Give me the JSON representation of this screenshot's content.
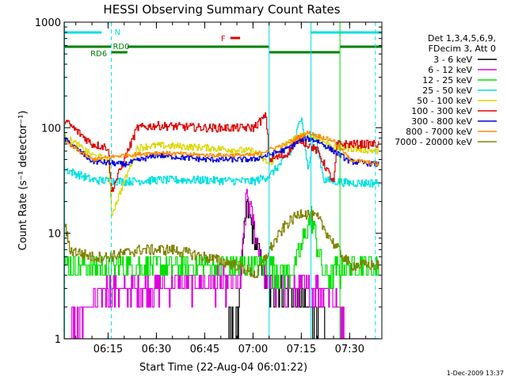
{
  "chart_data": {
    "type": "line",
    "title": "HESSI Observing Summary Count Rates",
    "xlabel": "Start Time (22-Aug-04 06:01:22)",
    "ylabel": "Count Rate (s⁻¹ detector⁻¹)",
    "y_scale": "log",
    "ylim": [
      1,
      1000
    ],
    "xlim": [
      "06:01:22",
      "07:40:00"
    ],
    "x_ticks": [
      "06:15",
      "06:30",
      "06:45",
      "07:00",
      "07:15",
      "07:30"
    ],
    "y_ticks": [
      "1",
      "10",
      "100",
      "1000"
    ],
    "legend": {
      "placement": "right",
      "header": [
        "Det 1,3,4,5,6,9,",
        "FDecim 3, Att 0"
      ]
    },
    "series": [
      {
        "name": "3 - 6 keV",
        "color": "#000000",
        "x": [
          "06:01",
          "06:35",
          "06:45",
          "06:55",
          "06:58",
          "07:01",
          "07:05",
          "07:10",
          "07:18",
          "07:25",
          "07:30",
          "07:39"
        ],
        "y": [
          1,
          1,
          1,
          1.5,
          18,
          8,
          3,
          3,
          2,
          1,
          1,
          1
        ]
      },
      {
        "name": "6 - 12 keV",
        "color": "#e000e0",
        "x": [
          "06:01",
          "06:14",
          "06:24",
          "06:45",
          "06:56",
          "06:58",
          "07:01",
          "07:05",
          "07:10",
          "07:18",
          "07:24",
          "07:30",
          "07:39"
        ],
        "y": [
          1,
          3,
          3,
          3.5,
          3.5,
          24,
          9,
          3,
          3,
          3,
          3,
          1,
          1
        ]
      },
      {
        "name": "12 - 25 keV",
        "color": "#00e000",
        "x": [
          "06:01",
          "06:15",
          "06:30",
          "06:50",
          "07:00",
          "07:05",
          "07:10",
          "07:13",
          "07:18",
          "07:22",
          "07:30",
          "07:39"
        ],
        "y": [
          5,
          5,
          5,
          5,
          5,
          5,
          4,
          5,
          15,
          4,
          5,
          5
        ]
      },
      {
        "name": "25 - 50 keV",
        "color": "#00e0e0",
        "x": [
          "06:02",
          "06:10",
          "06:20",
          "06:30",
          "06:45",
          "07:00",
          "07:05",
          "07:12",
          "07:15",
          "07:17",
          "07:19",
          "07:22",
          "07:30",
          "07:39"
        ],
        "y": [
          40,
          32,
          31,
          32,
          32,
          31,
          35,
          60,
          135,
          40,
          90,
          32,
          30,
          30
        ]
      },
      {
        "name": "50 - 100 keV",
        "color": "#d8d800",
        "x": [
          "06:01",
          "06:10",
          "06:15",
          "06:16",
          "06:24",
          "06:30",
          "06:45",
          "07:00",
          "07:05",
          "07:10",
          "07:15",
          "07:20",
          "07:25",
          "07:28",
          "07:39"
        ],
        "y": [
          85,
          55,
          50,
          15,
          65,
          68,
          65,
          60,
          45,
          70,
          85,
          80,
          65,
          65,
          60
        ]
      },
      {
        "name": "100 - 300 keV",
        "color": "#e00000",
        "x": [
          "06:01",
          "06:10",
          "06:15",
          "06:16",
          "06:24",
          "06:30",
          "06:45",
          "07:00",
          "07:04",
          "07:05",
          "07:10",
          "07:14",
          "07:20",
          "07:25",
          "07:26",
          "07:39"
        ],
        "y": [
          120,
          70,
          65,
          25,
          100,
          105,
          100,
          100,
          130,
          50,
          55,
          80,
          60,
          30,
          70,
          70
        ]
      },
      {
        "name": "300 - 800 keV",
        "color": "#0000e0",
        "x": [
          "06:01",
          "06:10",
          "06:20",
          "06:30",
          "06:45",
          "07:00",
          "07:10",
          "07:16",
          "07:20",
          "07:30",
          "07:39"
        ],
        "y": [
          80,
          48,
          45,
          55,
          50,
          50,
          62,
          80,
          75,
          48,
          45
        ]
      },
      {
        "name": "800 - 7000 keV",
        "color": "#ff8c00",
        "x": [
          "06:01",
          "06:10",
          "06:20",
          "06:30",
          "06:45",
          "07:00",
          "07:10",
          "07:17",
          "07:25",
          "07:30",
          "07:39"
        ],
        "y": [
          75,
          50,
          55,
          58,
          55,
          55,
          70,
          90,
          75,
          50,
          45
        ]
      },
      {
        "name": "7000 - 20000 keV",
        "color": "#808000",
        "x": [
          "06:01",
          "06:03",
          "06:10",
          "06:15",
          "06:25",
          "06:35",
          "06:45",
          "06:55",
          "07:01",
          "07:05",
          "07:10",
          "07:15",
          "07:20",
          "07:25",
          "07:30",
          "07:39"
        ],
        "y": [
          15,
          7,
          6,
          6,
          7,
          7,
          6,
          5,
          4,
          7,
          12,
          16,
          14,
          8,
          5,
          5
        ]
      }
    ],
    "annotations": {
      "n_label": "N",
      "f_label": "F",
      "rd0_label": "RD0",
      "rd6_label": "RD6"
    }
  },
  "footer": {
    "timestamp": "1-Dec-2009 13:37"
  }
}
